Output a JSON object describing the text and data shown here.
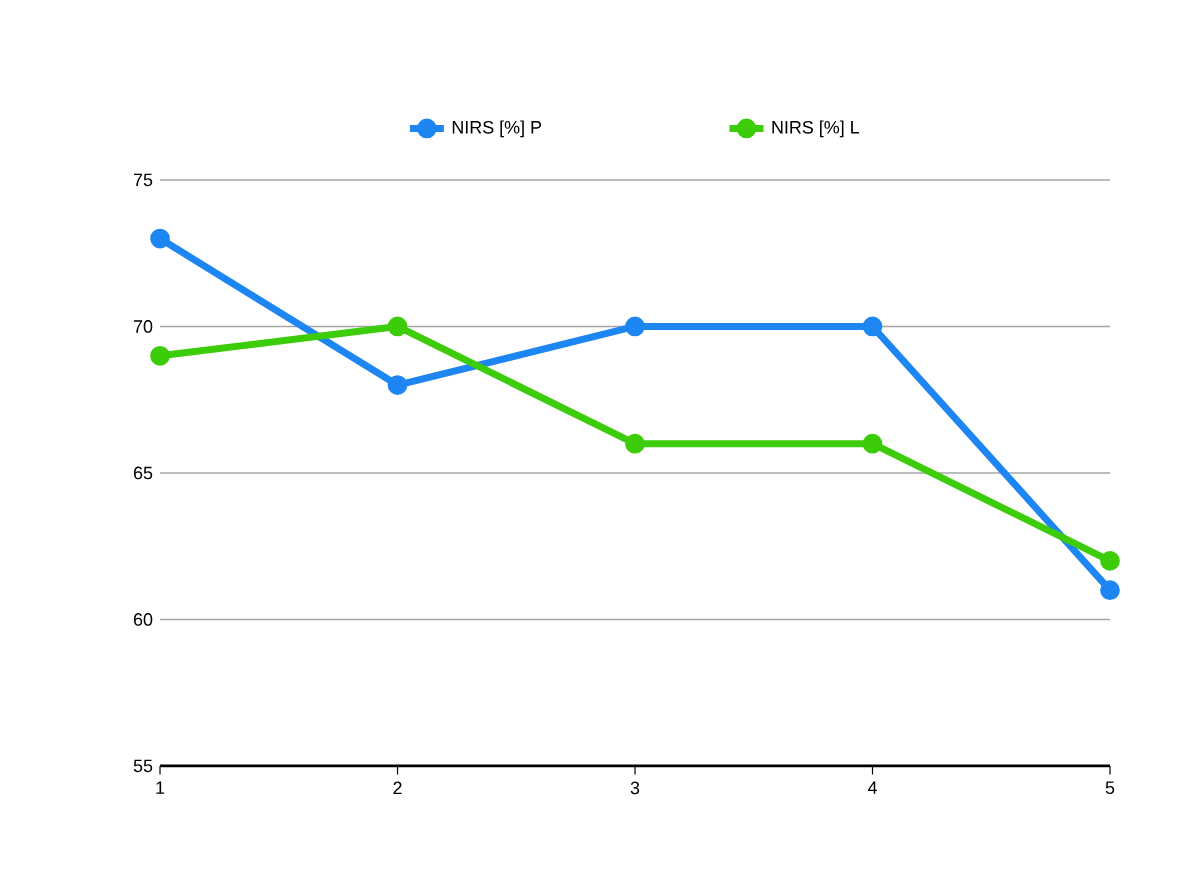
{
  "chart_data": {
    "type": "line",
    "x": [
      1,
      2,
      3,
      4,
      5
    ],
    "series": [
      {
        "name": "NIRS [%] P",
        "color": "#1e86f2",
        "values": [
          73,
          68,
          70,
          70,
          61
        ]
      },
      {
        "name": "NIRS [%] L",
        "color": "#3ccc0a",
        "values": [
          69,
          70,
          66,
          66,
          62
        ]
      }
    ],
    "xlim": [
      1,
      5
    ],
    "xticks": [
      1,
      2,
      3,
      4,
      5
    ],
    "ylim": [
      55,
      75
    ],
    "yticks": [
      55,
      60,
      65,
      70,
      75
    ],
    "grid": "y",
    "legend": "top",
    "marker": "circle",
    "line_style": "solid"
  }
}
